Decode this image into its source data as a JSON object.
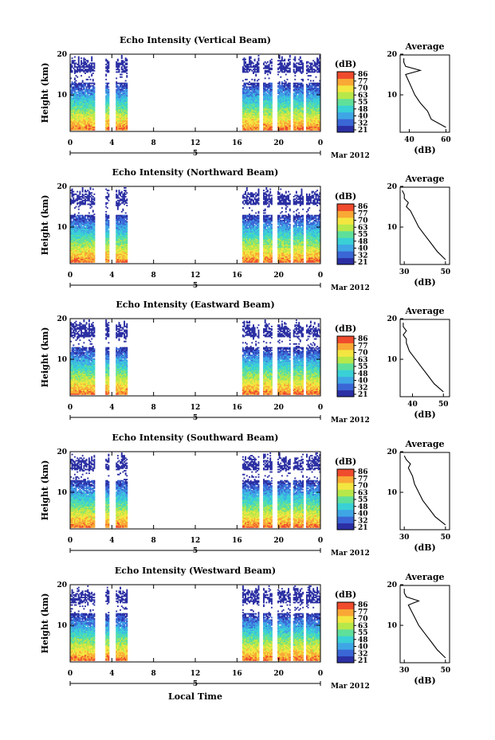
{
  "figure": {
    "bottom_xlabel": "Local Time",
    "date_label": "Mar 2012",
    "day_label": "5",
    "time_ticks": [
      "0",
      "4",
      "8",
      "12",
      "16",
      "20",
      "0"
    ],
    "height_ticks": [
      "20",
      "10"
    ],
    "colorbar_unit": "(dB)",
    "colorbar_ticks": [
      "86",
      "77",
      "70",
      "63",
      "55",
      "48",
      "40",
      "32",
      "21"
    ],
    "colorscale": [
      "#2b2fa3",
      "#3a66d6",
      "#3fa6e6",
      "#39d0d6",
      "#5fe09a",
      "#b7e84a",
      "#f3e640",
      "#f9a835",
      "#ef4b2c"
    ],
    "avg_title": "Average",
    "avg_xlabel": "(dB)",
    "ylabel": "Height (km)"
  },
  "chart_data": [
    {
      "type": "heatmap",
      "title": "Echo Intensity (Vertical Beam)",
      "xlabel": "Local Time",
      "ylabel": "Height (km)",
      "xlim": [
        0,
        24
      ],
      "ylim": [
        1,
        20
      ],
      "colorbar_range": [
        21,
        86
      ],
      "data_time_segments": [
        [
          0,
          5.5
        ],
        [
          16.5,
          24
        ]
      ],
      "average_profile": {
        "xlabel": "(dB)",
        "xticks": [
          "40",
          "60"
        ],
        "xlim": [
          35,
          62
        ],
        "heights": [
          2,
          4,
          6,
          8,
          10,
          12,
          14,
          15,
          16,
          17,
          18,
          19
        ],
        "values": [
          60,
          52,
          50,
          46,
          43,
          41,
          39,
          38,
          46,
          38,
          37,
          37
        ]
      }
    },
    {
      "type": "heatmap",
      "title": "Echo Intensity (Northward Beam)",
      "xlabel": "Local Time",
      "ylabel": "Height (km)",
      "xlim": [
        0,
        24
      ],
      "ylim": [
        1,
        20
      ],
      "colorbar_range": [
        21,
        86
      ],
      "data_time_segments": [
        [
          0,
          5.5
        ],
        [
          16.5,
          24
        ]
      ],
      "average_profile": {
        "xlabel": "(dB)",
        "xticks": [
          "30",
          "50"
        ],
        "xlim": [
          28,
          52
        ],
        "heights": [
          2,
          4,
          6,
          8,
          10,
          12,
          14,
          15,
          16,
          17,
          18,
          19
        ],
        "values": [
          50,
          46,
          43,
          40,
          37,
          35,
          33,
          31,
          32,
          30,
          30,
          29
        ]
      }
    },
    {
      "type": "heatmap",
      "title": "Echo Intensity (Eastward Beam)",
      "xlabel": "Local Time",
      "ylabel": "Height (km)",
      "xlim": [
        0,
        24
      ],
      "ylim": [
        1,
        20
      ],
      "colorbar_range": [
        21,
        86
      ],
      "data_time_segments": [
        [
          0,
          5.5
        ],
        [
          16.5,
          24
        ]
      ],
      "average_profile": {
        "xlabel": "(dB)",
        "xticks": [
          "40",
          "50"
        ],
        "xlim": [
          36,
          52
        ],
        "heights": [
          2,
          4,
          6,
          8,
          10,
          12,
          14,
          15,
          16,
          17,
          18,
          19
        ],
        "values": [
          50,
          47,
          45,
          43,
          41,
          39,
          38,
          38,
          37,
          38,
          37,
          37
        ]
      }
    },
    {
      "type": "heatmap",
      "title": "Echo Intensity (Southward Beam)",
      "xlabel": "Local Time",
      "ylabel": "Height (km)",
      "xlim": [
        0,
        24
      ],
      "ylim": [
        1,
        20
      ],
      "colorbar_range": [
        21,
        86
      ],
      "data_time_segments": [
        [
          0,
          5.5
        ],
        [
          16.5,
          24
        ]
      ],
      "average_profile": {
        "xlabel": "(dB)",
        "xticks": [
          "30",
          "50"
        ],
        "xlim": [
          28,
          52
        ],
        "heights": [
          2,
          4,
          6,
          8,
          10,
          12,
          14,
          15,
          16,
          17,
          18,
          19
        ],
        "values": [
          50,
          45,
          42,
          39,
          37,
          35,
          34,
          33,
          32,
          33,
          31,
          30
        ]
      }
    },
    {
      "type": "heatmap",
      "title": "Echo Intensity (Westward Beam)",
      "xlabel": "Local Time",
      "ylabel": "Height (km)",
      "xlim": [
        0,
        24
      ],
      "ylim": [
        1,
        20
      ],
      "colorbar_range": [
        21,
        86
      ],
      "data_time_segments": [
        [
          0,
          5.5
        ],
        [
          16.5,
          24
        ]
      ],
      "average_profile": {
        "xlabel": "(dB)",
        "xticks": [
          "30",
          "50"
        ],
        "xlim": [
          28,
          52
        ],
        "heights": [
          2,
          4,
          6,
          8,
          10,
          12,
          14,
          15,
          16,
          17,
          18,
          19
        ],
        "values": [
          50,
          46,
          43,
          40,
          37,
          35,
          33,
          32,
          37,
          31,
          30,
          30
        ]
      }
    }
  ]
}
